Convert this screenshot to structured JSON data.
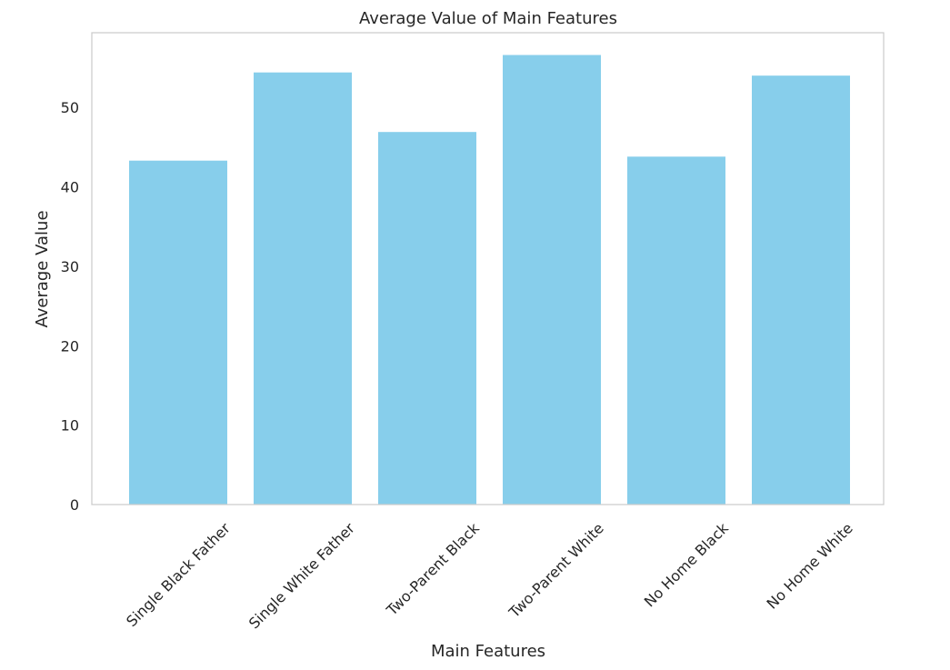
{
  "chart_data": {
    "type": "bar",
    "title": "Average Value of Main Features",
    "xlabel": "Main Features",
    "ylabel": "Average Value",
    "categories": [
      "Single Black Father",
      "Single White Father",
      "Two-Parent Black",
      "Two-Parent White",
      "No Home Black",
      "No Home White"
    ],
    "values": [
      43.3,
      54.4,
      46.9,
      56.6,
      43.8,
      54.0
    ],
    "ylim": [
      0,
      59.4
    ],
    "yticks": [
      0,
      10,
      20,
      30,
      40,
      50
    ],
    "grid": false,
    "legend": "none",
    "bar_color": "#87CEEB",
    "axis_color": "#cccccc"
  }
}
